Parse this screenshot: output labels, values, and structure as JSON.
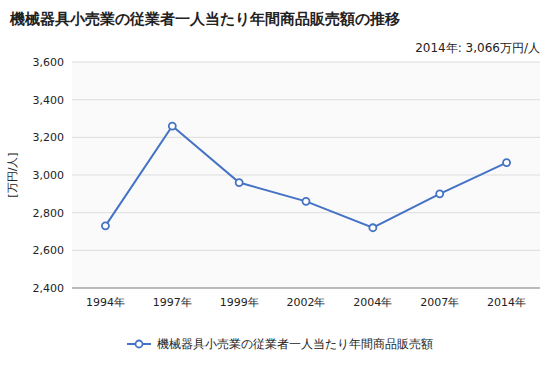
{
  "chart_data": {
    "type": "line",
    "title": "機械器具小売業の従業者一人当たり年間商品販売額の推移",
    "ylabel": "[万円/人]",
    "annotation": "2014年: 3,066万円/人",
    "categories": [
      "1994年",
      "1997年",
      "1999年",
      "2002年",
      "2004年",
      "2007年",
      "2014年"
    ],
    "series": [
      {
        "name": "機械器具小売業の従業者一人当たり年間商品販売額",
        "color": "#4472C4",
        "marker": "circle",
        "values": [
          2730,
          3260,
          2960,
          2860,
          2720,
          2900,
          3066
        ]
      }
    ],
    "ylim": [
      2400,
      3600
    ],
    "yticks": [
      {
        "value": 2400,
        "label": "2,400"
      },
      {
        "value": 2600,
        "label": "2,600"
      },
      {
        "value": 2800,
        "label": "2,800"
      },
      {
        "value": 3000,
        "label": "3,000"
      },
      {
        "value": 3200,
        "label": "3,200"
      },
      {
        "value": 3400,
        "label": "3,400"
      },
      {
        "value": 3600,
        "label": "3,600"
      }
    ],
    "grid": true,
    "legend": "bottom"
  }
}
